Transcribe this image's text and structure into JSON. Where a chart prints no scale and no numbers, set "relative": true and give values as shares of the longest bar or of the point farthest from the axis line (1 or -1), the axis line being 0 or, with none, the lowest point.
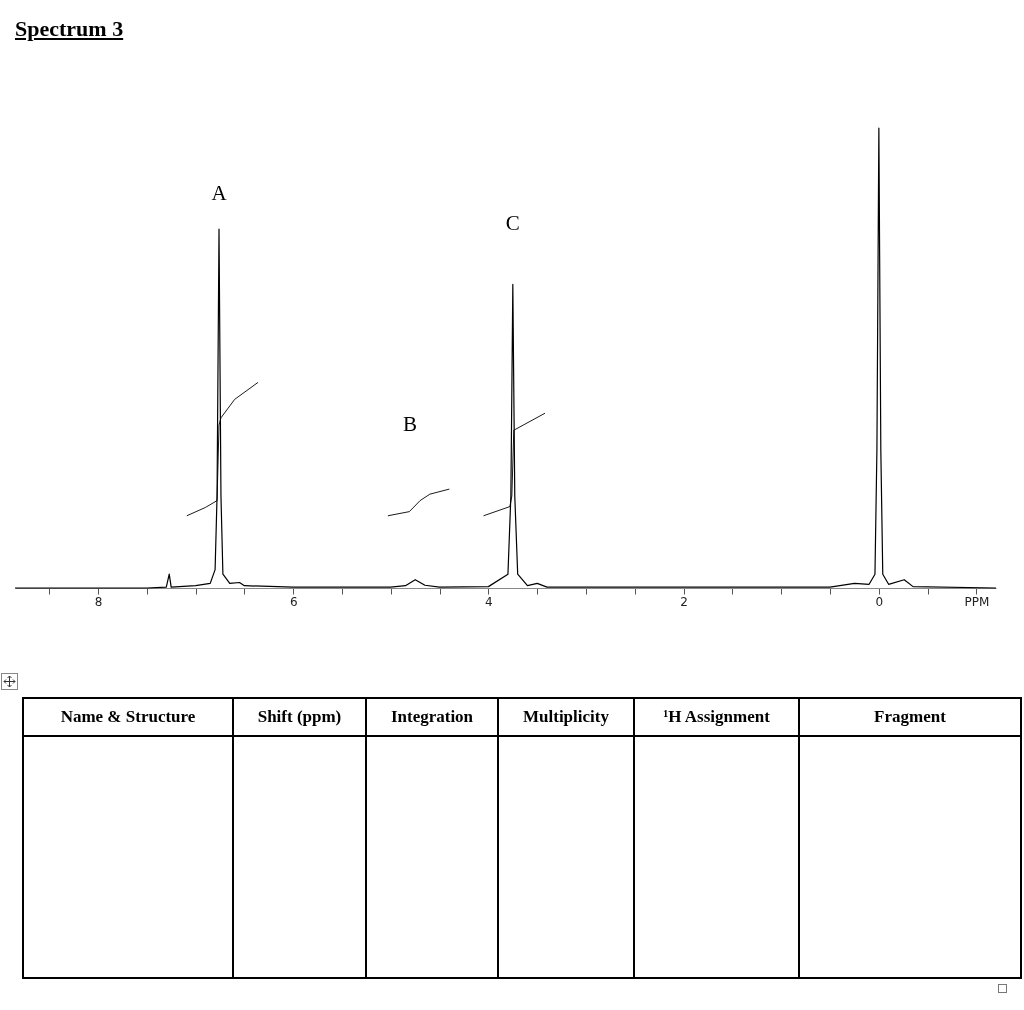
{
  "chart_data": [
    {
      "type": "line",
      "title": "Spectrum 3",
      "relative": true,
      "xlim": [
        8.85,
        -1.2
      ],
      "xticks": [
        {
          "value": 8.5,
          "label": null
        },
        8,
        {
          "value": 7.5,
          "label": null
        },
        {
          "value": 7,
          "label": null
        },
        {
          "value": 6.5,
          "label": null
        },
        6,
        {
          "value": 5.5,
          "label": null
        },
        {
          "value": 5,
          "label": null
        },
        {
          "value": 4.5,
          "label": null
        },
        4,
        {
          "value": 3.5,
          "label": null
        },
        {
          "value": 3,
          "label": null
        },
        {
          "value": 2.5,
          "label": null
        },
        2,
        {
          "value": 1.5,
          "label": null
        },
        {
          "value": 1,
          "label": null
        },
        {
          "value": 0.5,
          "label": null
        },
        0,
        {
          "value": -0.5,
          "label": null
        },
        {
          "value": -1,
          "label": "PPM"
        }
      ],
      "series": [
        {
          "color": "#000000",
          "x": [
            8.85,
            7.5,
            7.3,
            7.27,
            7.25,
            7.0,
            6.85,
            6.8,
            6.78,
            6.76,
            6.74,
            6.72,
            6.65,
            6.55,
            6.5,
            6.0,
            5.0,
            4.85,
            4.75,
            4.65,
            4.5,
            4.0,
            3.8,
            3.77,
            3.75,
            3.73,
            3.7,
            3.6,
            3.5,
            3.4,
            3.0,
            0.5,
            0.25,
            0.1,
            0.04,
            0.02,
            0,
            -0.02,
            -0.04,
            -0.1,
            -0.26,
            -0.35,
            -1.2
          ],
          "values": [
            0,
            0,
            0.002,
            0.03,
            0.002,
            0.005,
            0.01,
            0.04,
            0.2,
            0.78,
            0.2,
            0.03,
            0.01,
            0.012,
            0.005,
            0.002,
            0.002,
            0.005,
            0.018,
            0.006,
            0.002,
            0.003,
            0.03,
            0.2,
            0.66,
            0.2,
            0.03,
            0.005,
            0.01,
            0.002,
            0.002,
            0.002,
            0.01,
            0.008,
            0.03,
            0.3,
            1,
            0.3,
            0.03,
            0.008,
            0.018,
            0.003,
            0
          ]
        },
        {
          "color": "#000000",
          "x": [
            7.09,
            6.9,
            6.78,
            6.76,
            6.74,
            6.6,
            6.36
          ],
          "values": [
            0.157,
            0.175,
            0.19,
            0.354,
            0.37,
            0.41,
            0.447
          ]
        },
        {
          "color": "#000000",
          "x": [
            5.03,
            4.81,
            4.7,
            4.6,
            4.4
          ],
          "values": [
            0.157,
            0.166,
            0.19,
            0.204,
            0.215
          ]
        },
        {
          "color": "#000000",
          "x": [
            4.05,
            3.78,
            3.76,
            3.74,
            3.42
          ],
          "values": [
            0.157,
            0.177,
            0.2,
            0.343,
            0.38
          ]
        }
      ],
      "annotations": [
        {
          "text": "A",
          "x": 6.76,
          "y": 0.78
        },
        "B",
        {
          "text": "C",
          "x": 3.75,
          "y": 0.66
        }
      ]
    },
    {
      "type": "other",
      "annotations": [
        "Name & Structure",
        "Shift (ppm)",
        "Integration",
        "Multiplicity",
        "¹H Assignment",
        "Fragment"
      ]
    }
  ]
}
